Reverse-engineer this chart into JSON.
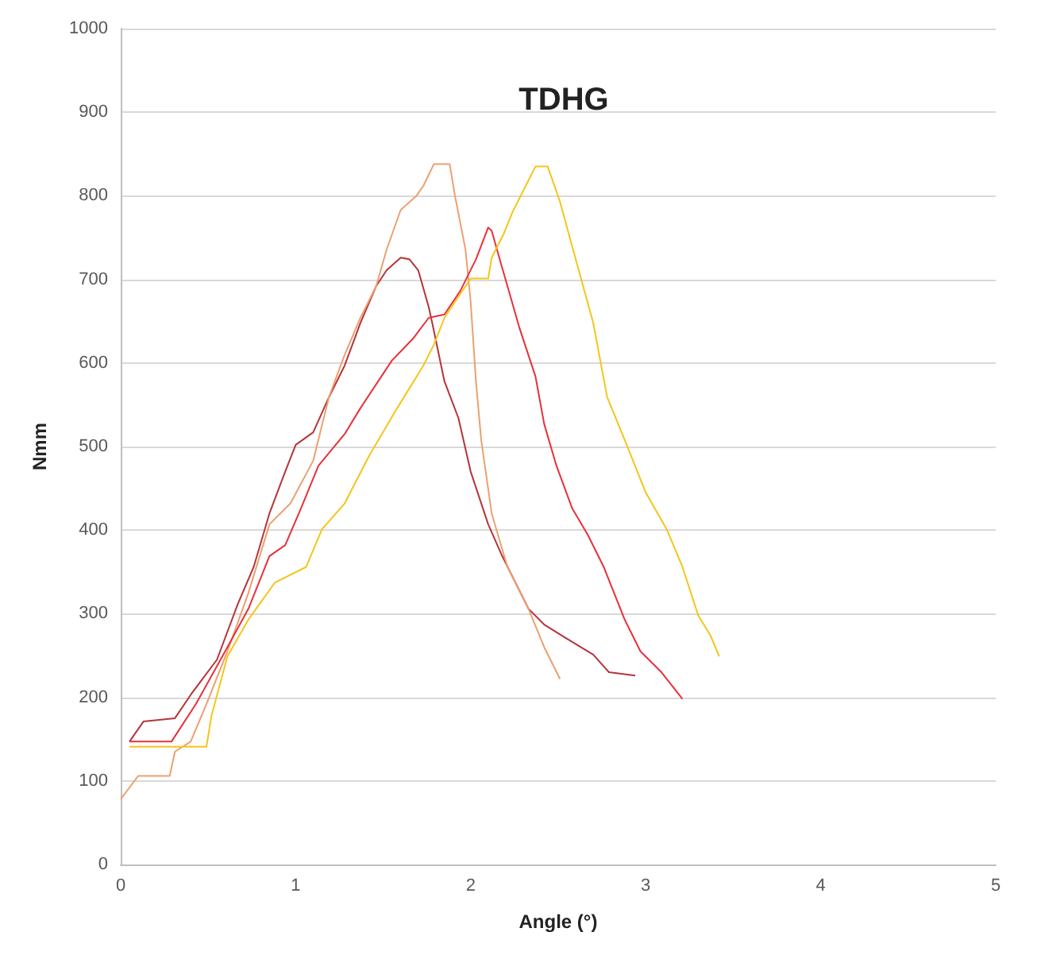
{
  "chart_data": {
    "type": "line",
    "title": "TDHG",
    "xlabel": "Angle (°)",
    "ylabel": "Nmm",
    "xlim": [
      0,
      5
    ],
    "xticks": [
      0,
      1,
      2,
      3,
      4,
      5
    ],
    "ylim": [
      0,
      1000
    ],
    "yticks": [
      0,
      100,
      200,
      300,
      400,
      500,
      600,
      700,
      800,
      900,
      1000
    ],
    "grid": "y",
    "marker": "none",
    "line_style": "solid",
    "series": [
      {
        "color": "#b5343a",
        "x": [
          0.05,
          0.13,
          0.31,
          0.4,
          0.55,
          0.67,
          0.76,
          0.85,
          0.94,
          1.0,
          1.1,
          1.19,
          1.28,
          1.37,
          1.46,
          1.52,
          1.6,
          1.65,
          1.7,
          1.76,
          1.78,
          1.85,
          1.93,
          2.0,
          2.1,
          2.18,
          2.33,
          2.42,
          2.55,
          2.7,
          2.79,
          2.94
        ],
        "values": [
          147,
          171,
          175,
          203,
          245,
          312,
          356,
          420,
          470,
          502,
          517,
          559,
          597,
          648,
          692,
          711,
          726,
          724,
          711,
          667,
          648,
          578,
          534,
          470,
          407,
          369,
          306,
          287,
          270,
          251,
          230,
          226
        ]
      },
      {
        "color": "#eba070",
        "x": [
          0,
          0.1,
          0.28,
          0.31,
          0.4,
          0.49,
          0.61,
          0.73,
          0.85,
          0.97,
          1.1,
          1.19,
          1.28,
          1.37,
          1.46,
          1.52,
          1.6,
          1.69,
          1.73,
          1.79,
          1.88,
          1.91,
          1.97,
          2.0,
          2.03,
          2.06,
          2.12,
          2.21,
          2.33,
          2.42,
          2.51
        ],
        "values": [
          78,
          106,
          106,
          135,
          147,
          192,
          255,
          325,
          407,
          432,
          483,
          559,
          610,
          654,
          692,
          736,
          783,
          800,
          812,
          838,
          838,
          800,
          736,
          673,
          578,
          508,
          420,
          356,
          306,
          260,
          222
        ]
      },
      {
        "color": "#e8303a",
        "x": [
          0.05,
          0.29,
          0.43,
          0.61,
          0.73,
          0.85,
          0.94,
          1.03,
          1.13,
          1.28,
          1.37,
          1.55,
          1.67,
          1.76,
          1.85,
          1.94,
          2.03,
          2.1,
          2.12,
          2.17,
          2.21,
          2.28,
          2.37,
          2.42,
          2.49,
          2.58,
          2.67,
          2.76,
          2.88,
          2.97,
          3.09,
          3.21
        ],
        "values": [
          147,
          147,
          192,
          260,
          306,
          369,
          382,
          426,
          477,
          515,
          546,
          603,
          629,
          654,
          658,
          686,
          724,
          762,
          758,
          721,
          692,
          641,
          584,
          527,
          477,
          426,
          394,
          356,
          293,
          255,
          230,
          198
        ]
      },
      {
        "color": "#f5c518",
        "x": [
          0.05,
          0.49,
          0.52,
          0.61,
          0.73,
          0.88,
          1.06,
          1.15,
          1.28,
          1.42,
          1.58,
          1.73,
          1.79,
          1.85,
          1.91,
          2.0,
          2.1,
          2.12,
          2.19,
          2.24,
          2.3,
          2.37,
          2.44,
          2.51,
          2.6,
          2.7,
          2.78,
          2.88,
          3.0,
          3.12,
          3.21,
          3.3,
          3.37,
          3.42
        ],
        "values": [
          141,
          141,
          179,
          249,
          293,
          337,
          356,
          401,
          432,
          489,
          546,
          597,
          622,
          654,
          673,
          701,
          701,
          726,
          755,
          781,
          806,
          835,
          835,
          793,
          724,
          648,
          559,
          508,
          445,
          401,
          356,
          298,
          274,
          249
        ]
      }
    ]
  }
}
